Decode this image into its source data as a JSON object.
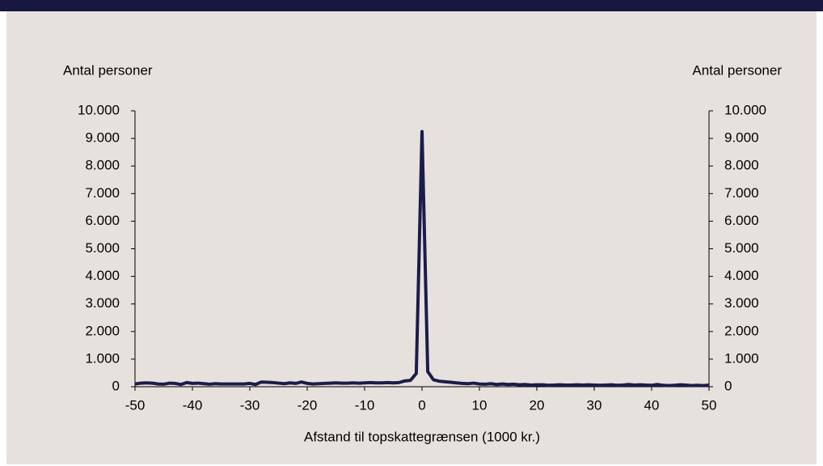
{
  "chart_data": {
    "type": "line",
    "xlabel": "Afstand til topskattegrænsen (1000 kr.)",
    "ylabel": "Antal personer",
    "y2label": "Antal personer",
    "color": "#1c1c4a",
    "x": [
      -50,
      -49,
      -48,
      -47,
      -46,
      -45,
      -44,
      -43,
      -42,
      -41,
      -40,
      -39,
      -38,
      -37,
      -36,
      -35,
      -34,
      -33,
      -32,
      -31,
      -30,
      -29,
      -28,
      -27,
      -26,
      -25,
      -24,
      -23,
      -22,
      -21,
      -20,
      -19,
      -18,
      -17,
      -16,
      -15,
      -14,
      -13,
      -12,
      -11,
      -10,
      -9,
      -8,
      -7,
      -6,
      -5,
      -4,
      -3,
      -2,
      -1,
      0,
      1,
      2,
      3,
      4,
      5,
      6,
      7,
      8,
      9,
      10,
      11,
      12,
      13,
      14,
      15,
      16,
      17,
      18,
      19,
      20,
      21,
      22,
      23,
      24,
      25,
      26,
      27,
      28,
      29,
      30,
      31,
      32,
      33,
      34,
      35,
      36,
      37,
      38,
      39,
      40,
      41,
      42,
      43,
      44,
      45,
      46,
      47,
      48,
      49,
      50
    ],
    "values": [
      100,
      130,
      140,
      130,
      100,
      90,
      130,
      120,
      80,
      150,
      120,
      130,
      110,
      90,
      110,
      100,
      100,
      100,
      100,
      100,
      120,
      80,
      170,
      160,
      150,
      130,
      110,
      140,
      120,
      170,
      120,
      100,
      110,
      120,
      130,
      140,
      130,
      130,
      140,
      130,
      140,
      150,
      140,
      140,
      150,
      140,
      150,
      210,
      230,
      480,
      9250,
      550,
      250,
      200,
      180,
      160,
      140,
      120,
      110,
      130,
      100,
      90,
      110,
      80,
      100,
      80,
      90,
      70,
      80,
      60,
      70,
      70,
      50,
      60,
      70,
      60,
      60,
      70,
      60,
      70,
      60,
      50,
      60,
      70,
      50,
      60,
      80,
      60,
      70,
      60,
      50,
      80,
      50,
      40,
      50,
      70,
      60,
      40,
      50,
      40,
      60
    ],
    "xlim": [
      -50,
      50
    ],
    "xticks": [
      -50,
      -40,
      -30,
      -20,
      -10,
      0,
      10,
      20,
      30,
      40,
      50
    ],
    "ylim": [
      0,
      10000
    ],
    "yticks": [
      0,
      {
        "value": 1000,
        "label": "1.000"
      },
      {
        "value": 2000,
        "label": "2.000"
      },
      {
        "value": 3000,
        "label": "3.000"
      },
      {
        "value": 4000,
        "label": "4.000"
      },
      {
        "value": 5000,
        "label": "5.000"
      },
      {
        "value": 6000,
        "label": "6.000"
      },
      {
        "value": 7000,
        "label": "7.000"
      },
      {
        "value": 8000,
        "label": "8.000"
      },
      {
        "value": 9000,
        "label": "9.000"
      },
      {
        "value": 10000,
        "label": "10.000"
      }
    ],
    "y2lim": [
      0,
      10000
    ],
    "y2ticks": [
      0,
      {
        "value": 1000,
        "label": "1.000"
      },
      {
        "value": 2000,
        "label": "2.000"
      },
      {
        "value": 3000,
        "label": "3.000"
      },
      {
        "value": 4000,
        "label": "4.000"
      },
      {
        "value": 5000,
        "label": "5.000"
      },
      {
        "value": 6000,
        "label": "6.000"
      },
      {
        "value": 7000,
        "label": "7.000"
      },
      {
        "value": 8000,
        "label": "8.000"
      },
      {
        "value": 9000,
        "label": "9.000"
      },
      {
        "value": 10000,
        "label": "10.000"
      }
    ]
  }
}
